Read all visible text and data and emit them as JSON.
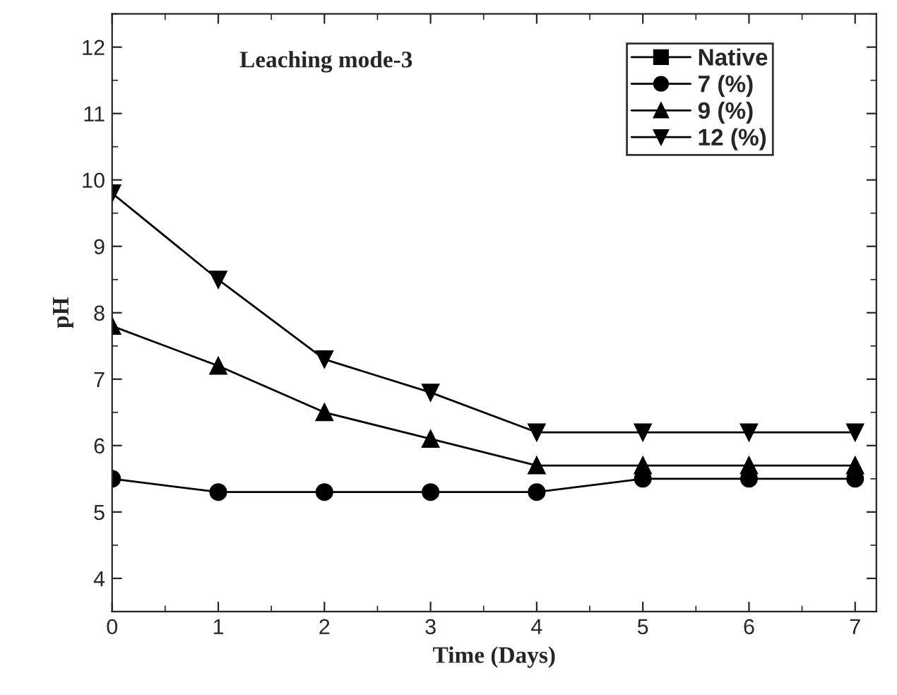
{
  "chart_data": {
    "type": "line",
    "title": "Leaching mode-3",
    "xlabel": "Time (Days)",
    "ylabel": "pH",
    "x": [
      0,
      1,
      2,
      3,
      4,
      5,
      6,
      7
    ],
    "series": [
      {
        "name": "Native",
        "color": "#000000",
        "marker": "square",
        "values": [
          null,
          null,
          null,
          null,
          null,
          null,
          null,
          null
        ]
      },
      {
        "name": "7 (%)",
        "color": "#000000",
        "marker": "circle",
        "values": [
          5.5,
          5.3,
          5.3,
          5.3,
          5.3,
          5.5,
          5.5,
          5.5
        ]
      },
      {
        "name": "9 (%)",
        "color": "#000000",
        "marker": "triangle",
        "values": [
          7.8,
          7.2,
          6.5,
          6.1,
          5.7,
          5.7,
          5.7,
          5.7
        ]
      },
      {
        "name": "12 (%)",
        "color": "#000000",
        "marker": "triangle_down",
        "values": [
          9.8,
          8.5,
          7.3,
          6.8,
          6.2,
          6.2,
          6.2,
          6.2
        ]
      }
    ],
    "xlim": [
      0,
      7.2
    ],
    "xticks": [
      0,
      1,
      2,
      3,
      4,
      5,
      6,
      7
    ],
    "ylim": [
      3.5,
      12.5
    ],
    "yticks": [
      4,
      5,
      6,
      7,
      8,
      9,
      10,
      11,
      12
    ],
    "grid": false,
    "legend": "top right",
    "line_style": "solid"
  }
}
